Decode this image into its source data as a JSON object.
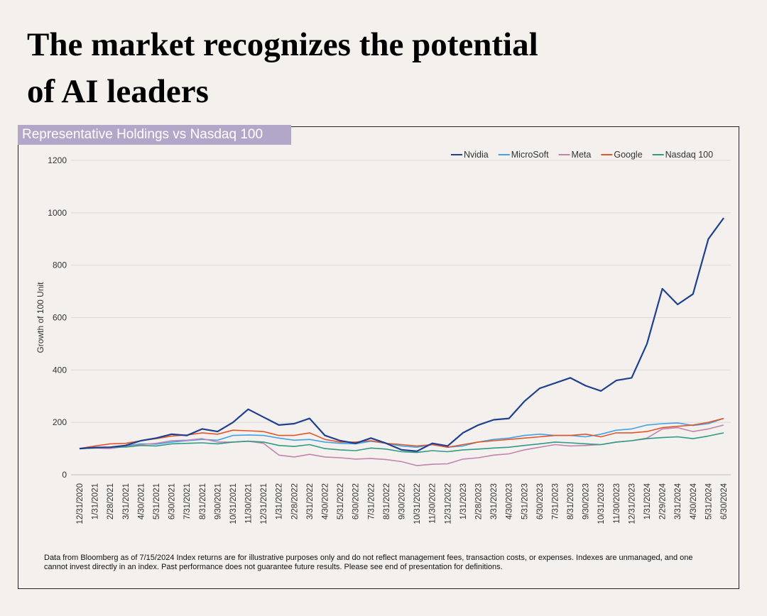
{
  "title_lines": [
    "The market recognizes the potential",
    "of AI leaders"
  ],
  "panel_label": "Representative Holdings vs Nasdaq 100",
  "footnote_lines": [
    "Data from Bloomberg as of 7/15/2024 Index returns are for illustrative purposes only and do not reflect management fees, transaction costs, or expenses. Indexes are unmanaged, and one",
    "cannot invest directly in an index. Past performance does not guarantee future results. Please see end of presentation for definitions."
  ],
  "colors": {
    "Nvidia": "#1f3f8f",
    "MicroSoft": "#3fa3e6",
    "Meta": "#c283b0",
    "Google": "#e2572a",
    "Nasdaq 100": "#2f9a86"
  },
  "chart_data": {
    "type": "line",
    "title": "",
    "xlabel": "",
    "ylabel": "Growth of 100 Unit",
    "ylim": [
      0,
      1200
    ],
    "yticks": [
      0,
      200,
      400,
      600,
      800,
      1000,
      1200
    ],
    "grid": true,
    "legend_position": "top-right",
    "x": [
      "12/31/2020",
      "1/31/2021",
      "2/28/2021",
      "3/31/2021",
      "4/30/2021",
      "5/31/2021",
      "6/30/2021",
      "7/31/2021",
      "8/31/2021",
      "9/30/2021",
      "10/31/2021",
      "11/30/2021",
      "12/31/2021",
      "1/31/2022",
      "2/28/2022",
      "3/31/2022",
      "4/30/2022",
      "5/31/2022",
      "6/30/2022",
      "7/31/2022",
      "8/31/2022",
      "9/30/2022",
      "10/31/2022",
      "11/30/2022",
      "12/31/2022",
      "1/31/2023",
      "2/28/2023",
      "3/31/2023",
      "4/30/2023",
      "5/31/2023",
      "6/30/2023",
      "7/31/2023",
      "8/31/2023",
      "9/30/2023",
      "10/31/2023",
      "11/30/2023",
      "12/31/2023",
      "1/31/2024",
      "2/29/2024",
      "3/31/2024",
      "4/30/2024",
      "5/31/2024",
      "6/30/2024"
    ],
    "series": [
      {
        "name": "Nvidia",
        "values": [
          100,
          104,
          105,
          112,
          130,
          140,
          155,
          150,
          175,
          165,
          200,
          250,
          220,
          190,
          195,
          215,
          150,
          130,
          120,
          140,
          120,
          95,
          90,
          120,
          110,
          160,
          190,
          210,
          215,
          280,
          330,
          350,
          370,
          340,
          320,
          360,
          370,
          500,
          710,
          650,
          690,
          900,
          980
        ]
      },
      {
        "name": "MicroSoft",
        "values": [
          100,
          104,
          105,
          110,
          118,
          117,
          125,
          130,
          135,
          132,
          150,
          152,
          150,
          140,
          132,
          135,
          125,
          120,
          118,
          128,
          120,
          110,
          105,
          115,
          105,
          110,
          125,
          135,
          140,
          150,
          155,
          150,
          150,
          145,
          155,
          170,
          175,
          190,
          195,
          198,
          188,
          195,
          215
        ]
      },
      {
        "name": "Meta",
        "values": [
          100,
          102,
          100,
          108,
          115,
          120,
          130,
          132,
          138,
          125,
          125,
          128,
          120,
          75,
          68,
          78,
          68,
          65,
          60,
          62,
          58,
          50,
          35,
          40,
          42,
          60,
          65,
          75,
          80,
          95,
          105,
          115,
          110,
          112,
          115,
          125,
          130,
          140,
          175,
          180,
          165,
          175,
          190
        ]
      },
      {
        "name": "Google",
        "values": [
          100,
          110,
          118,
          120,
          130,
          138,
          148,
          152,
          160,
          155,
          170,
          168,
          165,
          150,
          150,
          160,
          135,
          125,
          125,
          130,
          120,
          115,
          110,
          115,
          105,
          115,
          125,
          130,
          135,
          140,
          145,
          150,
          150,
          155,
          145,
          160,
          160,
          165,
          180,
          185,
          190,
          200,
          215
        ]
      },
      {
        "name": "Nasdaq 100",
        "values": [
          100,
          102,
          105,
          106,
          112,
          110,
          118,
          120,
          122,
          118,
          125,
          128,
          125,
          112,
          108,
          115,
          100,
          95,
          92,
          102,
          98,
          88,
          85,
          92,
          88,
          95,
          98,
          102,
          105,
          112,
          118,
          125,
          122,
          118,
          115,
          125,
          130,
          138,
          142,
          145,
          138,
          148,
          160
        ]
      }
    ]
  }
}
